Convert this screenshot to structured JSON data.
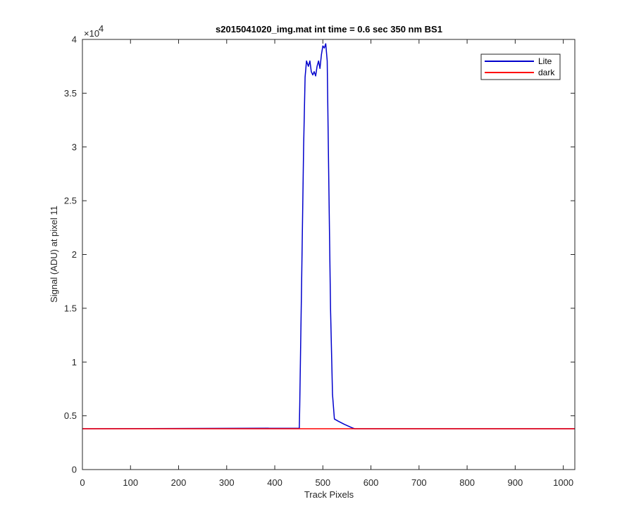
{
  "chart_data": {
    "type": "line",
    "title": "s2015041020_img.mat int time = 0.6 sec  350 nm BS1",
    "xlabel": "Track Pixels",
    "ylabel": "Signal (ADU) at pixel 11",
    "xlim": [
      0,
      1024
    ],
    "ylim": [
      0,
      40000
    ],
    "xticks": [
      0,
      100,
      200,
      300,
      400,
      500,
      600,
      700,
      800,
      900,
      1000
    ],
    "yticks": [
      0,
      0.5,
      1,
      1.5,
      2,
      2.5,
      3,
      3.5,
      4
    ],
    "yticks_scale": 10000,
    "y_exponent": "×10",
    "y_exponent_power": "4",
    "legend_position": "top-right",
    "series": [
      {
        "name": "Lite",
        "color": "#0000cc",
        "x": [
          0,
          451,
          452,
          456,
          460,
          463,
          466,
          470,
          473,
          476,
          479,
          482,
          485,
          488,
          491,
          494,
          497,
          500,
          503,
          506,
          509,
          512,
          516,
          520,
          524,
          532,
          545,
          560,
          566,
          600,
          700,
          800,
          900,
          1024
        ],
        "y": [
          3800,
          3850,
          6000,
          18000,
          30000,
          36500,
          38000,
          37500,
          38000,
          37000,
          36700,
          37000,
          36600,
          37500,
          38000,
          37300,
          38600,
          39400,
          39200,
          39600,
          38000,
          28000,
          15000,
          7000,
          4700,
          4500,
          4200,
          3900,
          3800,
          3800,
          3800,
          3800,
          3800,
          3800
        ]
      },
      {
        "name": "dark",
        "color": "#ff0000",
        "x": [
          0,
          1024
        ],
        "y": [
          3800,
          3800
        ]
      }
    ]
  }
}
